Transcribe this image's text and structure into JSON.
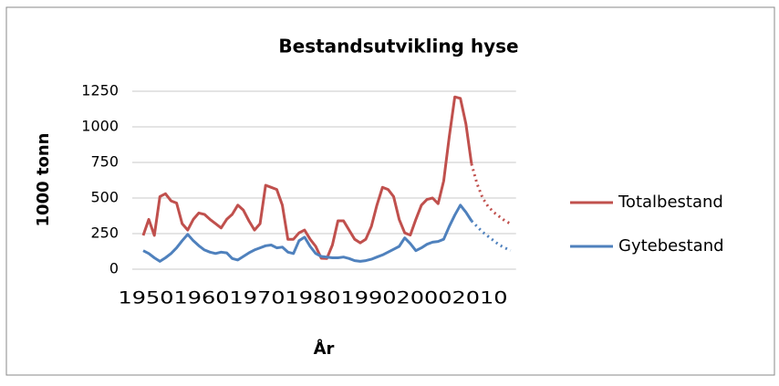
{
  "chart_data": {
    "type": "line",
    "title": "Bestandsutvikling hyse",
    "x_label": "År",
    "y_label": "1000 tonn",
    "x": [
      1950,
      1951,
      1952,
      1953,
      1954,
      1955,
      1956,
      1957,
      1958,
      1959,
      1960,
      1961,
      1962,
      1963,
      1964,
      1965,
      1966,
      1967,
      1968,
      1969,
      1970,
      1971,
      1972,
      1973,
      1974,
      1975,
      1976,
      1977,
      1978,
      1979,
      1980,
      1981,
      1982,
      1983,
      1984,
      1985,
      1986,
      1987,
      1988,
      1989,
      1990,
      1991,
      1992,
      1993,
      1994,
      1995,
      1996,
      1997,
      1998,
      1999,
      2000,
      2001,
      2002,
      2003,
      2004,
      2005,
      2006,
      2007,
      2008,
      2009,
      2010,
      2011,
      2012,
      2013,
      2014,
      2015,
      2016
    ],
    "series": [
      {
        "name": "Totalbestand",
        "color": "#c0504d",
        "values": [
          237,
          350,
          237,
          510,
          530,
          480,
          465,
          320,
          275,
          350,
          395,
          385,
          350,
          320,
          290,
          350,
          385,
          450,
          415,
          340,
          275,
          320,
          590,
          575,
          560,
          450,
          210,
          210,
          255,
          275,
          210,
          160,
          77,
          75,
          170,
          340,
          340,
          275,
          210,
          185,
          210,
          300,
          450,
          575,
          560,
          510,
          350,
          255,
          240,
          350,
          450,
          490,
          500,
          460,
          620,
          930,
          1210,
          1200,
          1020,
          740,
          600,
          500,
          440,
          400,
          370,
          340,
          320
        ]
      },
      {
        "name": "Gytebestand",
        "color": "#4f81bd",
        "values": [
          130,
          110,
          80,
          55,
          80,
          110,
          150,
          200,
          245,
          200,
          165,
          135,
          120,
          110,
          120,
          115,
          75,
          65,
          90,
          115,
          135,
          150,
          165,
          170,
          150,
          155,
          120,
          110,
          200,
          225,
          160,
          110,
          90,
          85,
          80,
          80,
          85,
          75,
          60,
          55,
          60,
          70,
          85,
          100,
          120,
          140,
          160,
          220,
          180,
          130,
          150,
          175,
          190,
          195,
          210,
          300,
          380,
          450,
          400,
          340,
          300,
          260,
          230,
          200,
          170,
          150,
          130
        ]
      }
    ],
    "projection_from": 2009,
    "xlim": [
      1950,
      2017
    ],
    "xticks": [
      1950,
      1960,
      1970,
      1980,
      1990,
      2000,
      2010
    ],
    "ylim": [
      0,
      1250
    ],
    "yticks": [
      0,
      250,
      500,
      750,
      1000,
      1250
    ],
    "grid": true,
    "legend": "right"
  }
}
